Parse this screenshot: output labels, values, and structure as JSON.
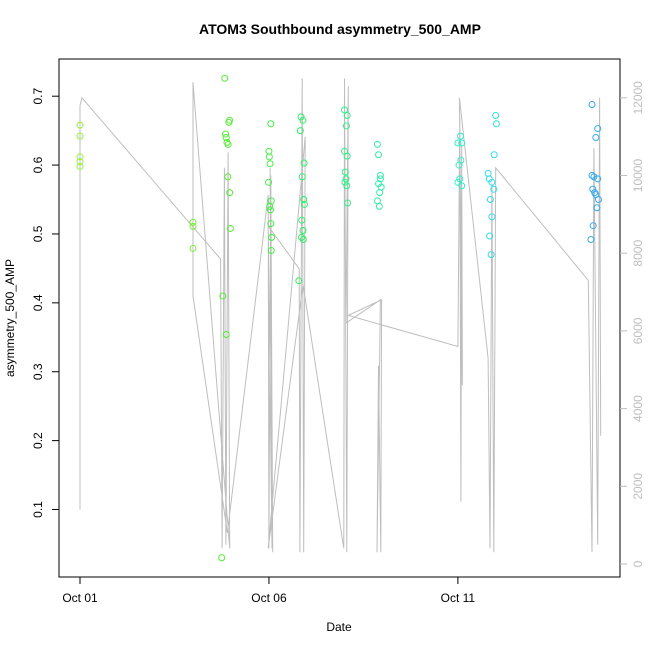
{
  "chart_data": {
    "type": "scatter",
    "title": "ATOM3 Southbound asymmetry_500_AMP",
    "xlabel": "Date",
    "ylabel": "asymmetry_500_AMP",
    "xlim": [
      -0.556,
      14.29
    ],
    "xticks": [
      {
        "value": 0,
        "label": "Oct 01"
      },
      {
        "value": 5,
        "label": "Oct 06"
      },
      {
        "value": 10,
        "label": "Oct 11"
      }
    ],
    "ylim": [
      0.002,
      0.754
    ],
    "yticks": [
      0.1,
      0.2,
      0.3,
      0.4,
      0.5,
      0.6,
      0.7
    ],
    "y2lim": [
      -335,
      13000
    ],
    "y2ticks": [
      0,
      2000,
      4000,
      6000,
      8000,
      10000,
      12000
    ],
    "x": [
      0,
      0,
      0,
      0,
      0,
      2.99,
      2.99,
      2.99,
      3.83,
      3.85,
      3.87,
      3.89,
      3.92,
      3.94,
      3.96,
      3.91,
      3.96,
      3.98,
      3.78,
      3.87,
      3.75,
      5.05,
      5.0,
      5.01,
      5.03,
      4.99,
      5.02,
      5.04,
      5.06,
      5.05,
      5.07,
      5.06,
      5.85,
      5.9,
      5.83,
      5.93,
      5.88,
      5.92,
      5.94,
      5.87,
      5.9,
      5.86,
      5.91,
      5.79,
      7.0,
      7.07,
      7.05,
      7.0,
      7.07,
      7.02,
      7.04,
      7.01,
      7.06,
      7.08,
      7.87,
      7.9,
      7.95,
      7.9,
      7.97,
      7.93,
      7.87,
      7.92,
      7.95,
      10.07,
      10.0,
      10.1,
      10.08,
      10.03,
      10.05,
      10.0,
      10.1,
      11.0,
      11.02,
      10.96,
      10.8,
      10.83,
      10.9,
      10.95,
      10.86,
      10.9,
      10.84,
      10.88,
      13.55,
      13.7,
      13.65,
      13.55,
      13.6,
      13.7,
      13.57,
      13.62,
      13.65,
      13.72,
      13.68,
      13.58,
      13.52
    ],
    "values": [
      0.658,
      0.642,
      0.612,
      0.605,
      0.598,
      0.517,
      0.511,
      0.479,
      0.726,
      0.645,
      0.64,
      0.633,
      0.63,
      0.662,
      0.665,
      0.583,
      0.56,
      0.508,
      0.41,
      0.354,
      0.03,
      0.66,
      0.62,
      0.612,
      0.602,
      0.575,
      0.54,
      0.535,
      0.548,
      0.515,
      0.495,
      0.476,
      0.67,
      0.665,
      0.65,
      0.603,
      0.583,
      0.55,
      0.543,
      0.52,
      0.505,
      0.495,
      0.492,
      0.432,
      0.68,
      0.672,
      0.657,
      0.62,
      0.613,
      0.59,
      0.58,
      0.575,
      0.57,
      0.545,
      0.63,
      0.615,
      0.585,
      0.573,
      0.568,
      0.56,
      0.548,
      0.54,
      0.58,
      0.642,
      0.632,
      0.632,
      0.607,
      0.6,
      0.58,
      0.575,
      0.57,
      0.672,
      0.66,
      0.615,
      0.588,
      0.58,
      0.575,
      0.565,
      0.55,
      0.525,
      0.497,
      0.47,
      0.688,
      0.653,
      0.64,
      0.585,
      0.583,
      0.58,
      0.565,
      0.56,
      0.557,
      0.55,
      0.538,
      0.512,
      0.492
    ],
    "colors": [
      "#99ee44",
      "#99ee44",
      "#99ee44",
      "#99ee44",
      "#99ee44",
      "#77ee33",
      "#77ee33",
      "#77ee33",
      "#55ee33",
      "#55ee33",
      "#55ee33",
      "#55ee33",
      "#55ee33",
      "#55ee33",
      "#55ee33",
      "#55ee33",
      "#55ee33",
      "#55ee33",
      "#55ee33",
      "#55ee33",
      "#55ee33",
      "#44ee44",
      "#44ee44",
      "#44ee44",
      "#44ee44",
      "#44ee44",
      "#44ee44",
      "#44ee44",
      "#44ee44",
      "#44ee44",
      "#44ee44",
      "#44ee44",
      "#33ee66",
      "#33ee66",
      "#33ee66",
      "#33ee66",
      "#33ee66",
      "#33ee66",
      "#33ee66",
      "#33ee66",
      "#33ee66",
      "#33ee66",
      "#33ee66",
      "#33ee66",
      "#33ee88",
      "#33ee88",
      "#33ee88",
      "#33ee88",
      "#33ee88",
      "#33ee88",
      "#33ee88",
      "#33ee88",
      "#33ee88",
      "#33ee88",
      "#33eeaa",
      "#33eeaa",
      "#33eeaa",
      "#33eeaa",
      "#33eeaa",
      "#33eeaa",
      "#33eeaa",
      "#33eeaa",
      "#33eeaa",
      "#33eecc",
      "#33eecc",
      "#33eecc",
      "#33eecc",
      "#33eecc",
      "#33eecc",
      "#33eecc",
      "#33eecc",
      "#33ddee",
      "#33ddee",
      "#33ddee",
      "#33ddee",
      "#33ddee",
      "#33ddee",
      "#33ddee",
      "#33ddee",
      "#33ddee",
      "#33ddee",
      "#33ddee",
      "#33aaee",
      "#33aaee",
      "#33aaee",
      "#33aaee",
      "#33aaee",
      "#33aaee",
      "#33aaee",
      "#33aaee",
      "#33aaee",
      "#33aaee",
      "#33aaee",
      "#33aaee",
      "#33aaee"
    ],
    "line": {
      "axis": "y2",
      "color": "#bebebe",
      "x": [
        0,
        0,
        0.05,
        3.72,
        3.76,
        3.82,
        3.86,
        3.92,
        3.96,
        2.99,
        2.99,
        3.9,
        4.98,
        5.0,
        5.05,
        5.1,
        5.03,
        5.08,
        4.98,
        5.8,
        5.82,
        5.88,
        5.92,
        5.96,
        4.98,
        5.9,
        6.98,
        7.0,
        7.06,
        7.1,
        7.04,
        7.95,
        7.86,
        7.9,
        7.96,
        7.98,
        7.1,
        10.0,
        10.05,
        10.08,
        10.1,
        10.12,
        10.04,
        10.8,
        10.85,
        10.9,
        10.95,
        11.0,
        13.45,
        13.55,
        13.6,
        13.7,
        13.75,
        13.78
      ],
      "values": [
        1400,
        11800,
        12000,
        7850,
        400,
        10200,
        500,
        10600,
        400,
        12400,
        6900,
        800,
        9500,
        400,
        10000,
        300,
        10200,
        400,
        8700,
        7600,
        300,
        12500,
        300,
        11000,
        400,
        7200,
        400,
        12500,
        300,
        12300,
        6200,
        6800,
        300,
        5100,
        300,
        6800,
        6400,
        5600,
        11500,
        1600,
        10800,
        4600,
        12000,
        5300,
        400,
        9800,
        300,
        10200,
        7300,
        300,
        10700,
        500,
        12000,
        3300
      ]
    }
  }
}
